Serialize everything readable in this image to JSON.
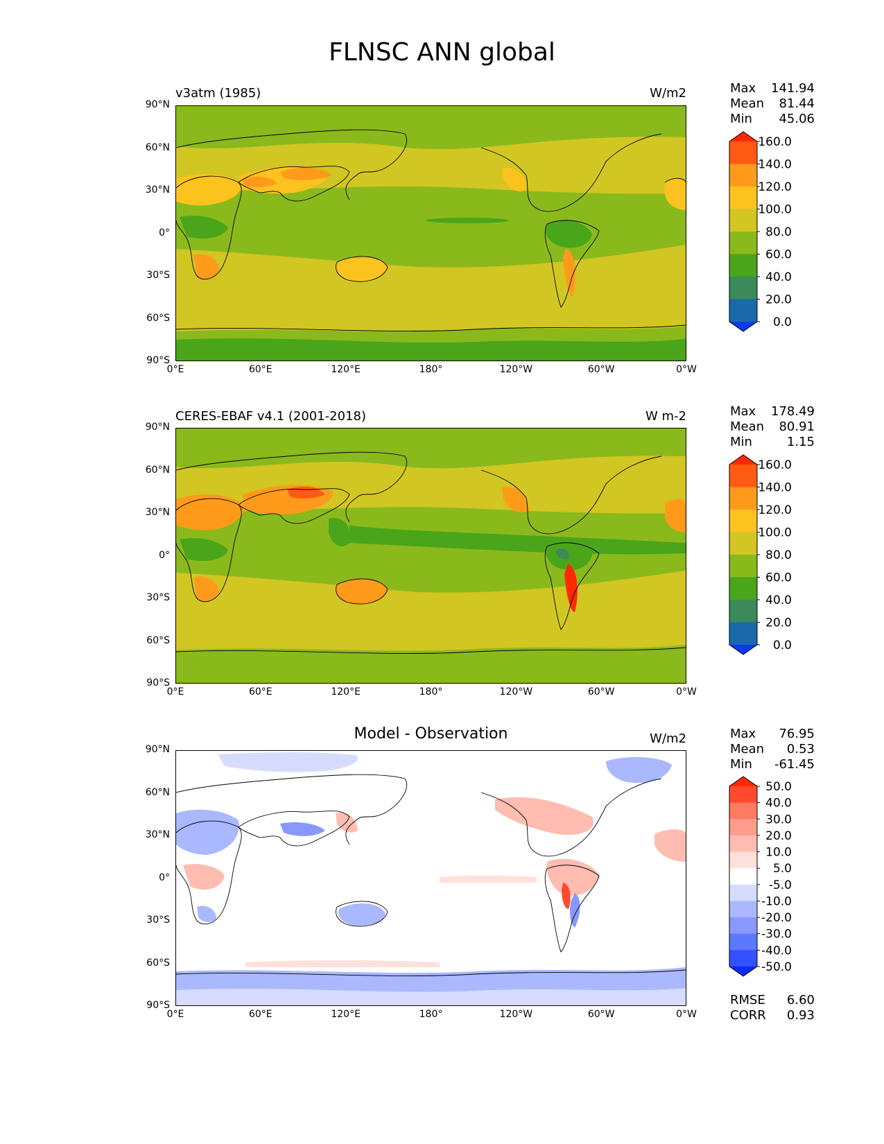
{
  "title": "FLNSC ANN global",
  "panels": [
    {
      "id": "model",
      "title": "v3atm (1985)",
      "title_centered": false,
      "units": "W/m2",
      "stats": [
        {
          "label": "Max",
          "value": "141.94"
        },
        {
          "label": "Mean",
          "value": "81.44"
        },
        {
          "label": "Min",
          "value": "45.06"
        }
      ],
      "colorbar": {
        "labels": [
          "160.0",
          "140.0",
          "120.0",
          "100.0",
          "80.0",
          "60.0",
          "40.0",
          "20.0",
          "0.0"
        ],
        "colors": [
          "#ff2a00",
          "#ff5a14",
          "#ff9a1a",
          "#fcc21e",
          "#d2c622",
          "#8ab91c",
          "#4aa51a",
          "#3a8a5a",
          "#1a6aaa",
          "#0a3af0"
        ]
      }
    },
    {
      "id": "obs",
      "title": "CERES-EBAF v4.1 (2001-2018)",
      "title_centered": false,
      "units": "W m-2",
      "stats": [
        {
          "label": "Max",
          "value": "178.49"
        },
        {
          "label": "Mean",
          "value": "80.91"
        },
        {
          "label": "Min",
          "value": "1.15"
        }
      ],
      "colorbar": {
        "labels": [
          "160.0",
          "140.0",
          "120.0",
          "100.0",
          "80.0",
          "60.0",
          "40.0",
          "20.0",
          "0.0"
        ],
        "colors": [
          "#ff2a00",
          "#ff5a14",
          "#ff9a1a",
          "#fcc21e",
          "#d2c622",
          "#8ab91c",
          "#4aa51a",
          "#3a8a5a",
          "#1a6aaa",
          "#0a3af0"
        ]
      }
    },
    {
      "id": "diff",
      "title": "Model - Observation",
      "title_centered": true,
      "units": "W/m2",
      "stats": [
        {
          "label": "Max",
          "value": "76.95"
        },
        {
          "label": "Mean",
          "value": "0.53"
        },
        {
          "label": "Min",
          "value": "-61.45"
        }
      ],
      "extra_stats": [
        {
          "label": "RMSE",
          "value": "6.60"
        },
        {
          "label": "CORR",
          "value": "0.93"
        }
      ],
      "colorbar": {
        "labels": [
          "50.0",
          "40.0",
          "30.0",
          "20.0",
          "10.0",
          "5.0",
          "-5.0",
          "-10.0",
          "-20.0",
          "-30.0",
          "-40.0",
          "-50.0"
        ],
        "colors": [
          "#ff2a00",
          "#ff4a2e",
          "#ff7a62",
          "#ff9c8c",
          "#ffbcb0",
          "#ffe0da",
          "#ffffff",
          "#d6dcff",
          "#aab8ff",
          "#8898ff",
          "#5c78ff",
          "#3450ff",
          "#0a2af5"
        ]
      }
    }
  ],
  "axes": {
    "y_ticks": [
      "90°N",
      "60°N",
      "30°N",
      "0°",
      "30°S",
      "60°S",
      "90°S"
    ],
    "x_ticks": [
      "0°E",
      "60°E",
      "120°E",
      "180°",
      "120°W",
      "60°W",
      "0°W"
    ]
  }
}
